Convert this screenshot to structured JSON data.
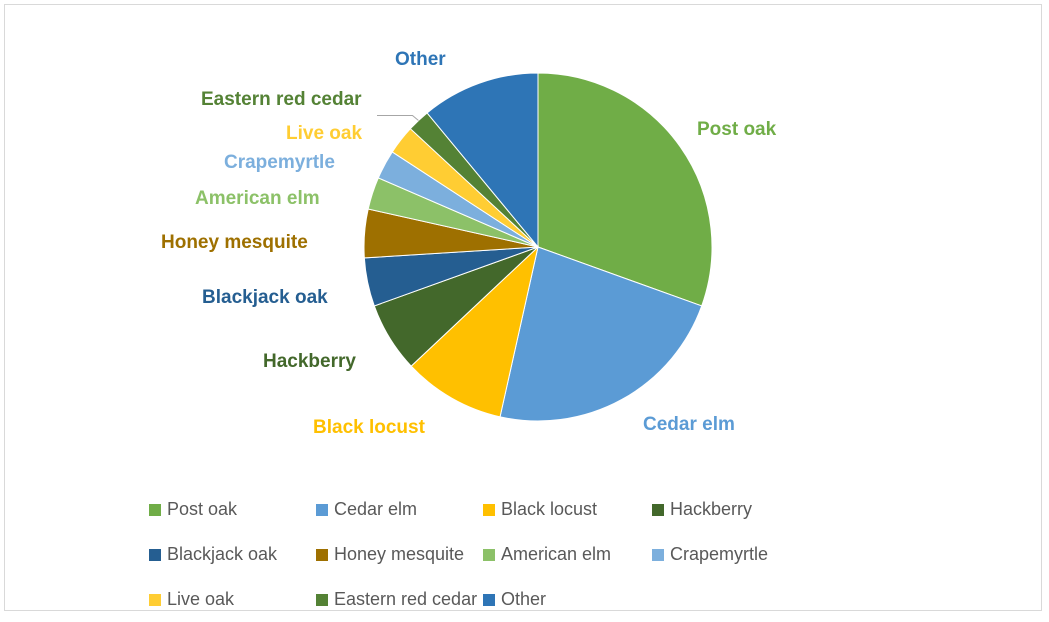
{
  "chart_data": {
    "type": "pie",
    "title": "",
    "legend_position": "bottom",
    "slices": [
      {
        "label": "Post oak",
        "value": 30.5,
        "color": "#70ad47",
        "label_color": "#70ad47"
      },
      {
        "label": "Cedar elm",
        "value": 23.0,
        "color": "#5b9bd5",
        "label_color": "#5b9bd5"
      },
      {
        "label": "Black locust",
        "value": 9.5,
        "color": "#ffc000",
        "label_color": "#ffc000"
      },
      {
        "label": "Hackberry",
        "value": 6.5,
        "color": "#43682b",
        "label_color": "#43682b"
      },
      {
        "label": "Blackjack oak",
        "value": 4.5,
        "color": "#255e91",
        "label_color": "#255e91"
      },
      {
        "label": "Honey mesquite",
        "value": 4.5,
        "color": "#9e7000",
        "label_color": "#9e7000"
      },
      {
        "label": "American elm",
        "value": 3.0,
        "color": "#8cc168",
        "label_color": "#8cc168"
      },
      {
        "label": "Crapemyrtle",
        "value": 2.7,
        "color": "#7cafdd",
        "label_color": "#7cafdd"
      },
      {
        "label": "Live oak",
        "value": 2.7,
        "color": "#ffcd33",
        "label_color": "#ffcd33"
      },
      {
        "label": "Eastern red cedar",
        "value": 2.1,
        "color": "#548235",
        "label_color": "#548235"
      },
      {
        "label": "Other",
        "value": 11.0,
        "color": "#2e75b6",
        "label_color": "#2e75b6"
      }
    ]
  }
}
